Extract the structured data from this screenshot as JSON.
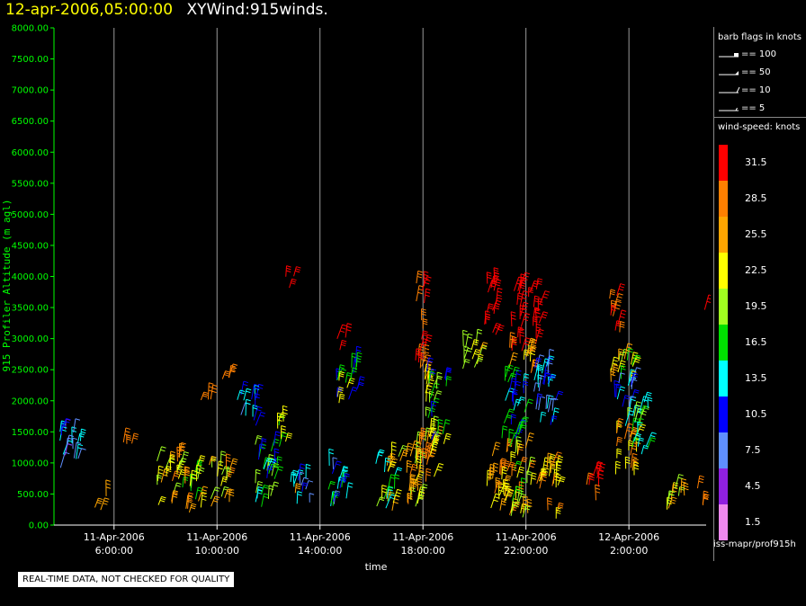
{
  "header": {
    "timestamp": "12-apr-2006,05:00:00",
    "title": "XYWind:915winds."
  },
  "chart_data": {
    "type": "wind-barb-time-height",
    "title": "XYWind:915winds.",
    "xlabel": "time",
    "ylabel": "915 Profiler Altitude (m agl)",
    "ylim": [
      0,
      8000
    ],
    "yticks": [
      "0.00",
      "500.00",
      "1000.00",
      "1500.00",
      "2000.00",
      "2500.00",
      "3000.00",
      "3500.00",
      "4000.00",
      "4500.00",
      "5000.00",
      "5500.00",
      "6000.00",
      "6500.00",
      "7000.00",
      "7500.00",
      "8000.00"
    ],
    "xlim": [
      "2006-04-11T03:40",
      "2006-04-12T05:00"
    ],
    "xticks": [
      {
        "date": "11-Apr-2006",
        "time": "6:00:00"
      },
      {
        "date": "11-Apr-2006",
        "time": "10:00:00"
      },
      {
        "date": "11-Apr-2006",
        "time": "14:00:00"
      },
      {
        "date": "11-Apr-2006",
        "time": "18:00:00"
      },
      {
        "date": "11-Apr-2006",
        "time": "22:00:00"
      },
      {
        "date": "12-Apr-2006",
        "time": "2:00:00"
      }
    ],
    "grid": "vertical lines at x ticks",
    "barb_legend": {
      "title": "barb flags in knots",
      "items": [
        "== 100",
        "== 50",
        "== 10",
        "== 5"
      ]
    },
    "colorbar": {
      "title": "wind-speed: knots",
      "levels": [
        {
          "label": "31.5",
          "color": "#ff0000"
        },
        {
          "label": "28.5",
          "color": "#ff7f00"
        },
        {
          "label": "25.5",
          "color": "#ffa500"
        },
        {
          "label": "22.5",
          "color": "#ffff00"
        },
        {
          "label": "19.5",
          "color": "#a0ff20"
        },
        {
          "label": "16.5",
          "color": "#00e000"
        },
        {
          "label": "13.5",
          "color": "#00ffff"
        },
        {
          "label": "10.5",
          "color": "#0000ff"
        },
        {
          "label": "7.5",
          "color": "#5f8fff"
        },
        {
          "label": "4.5",
          "color": "#9020e0"
        },
        {
          "label": "1.5",
          "color": "#ee88ee"
        }
      ]
    },
    "clusters": [
      {
        "t": 4.3,
        "alt_min": 800,
        "alt_max": 1600,
        "speeds": [
          4,
          8,
          13,
          10
        ]
      },
      {
        "t": 5.5,
        "alt_min": 200,
        "alt_max": 500,
        "speeds": [
          26
        ]
      },
      {
        "t": 6.5,
        "alt_min": 1300,
        "alt_max": 1350,
        "speeds": [
          29
        ]
      },
      {
        "t": 8.1,
        "alt_min": 200,
        "alt_max": 1100,
        "speeds": [
          22,
          25,
          19,
          28
        ]
      },
      {
        "t": 9.0,
        "alt_min": 200,
        "alt_max": 1000,
        "speeds": [
          24,
          28,
          19,
          22,
          16
        ]
      },
      {
        "t": 10.1,
        "alt_min": 300,
        "alt_max": 1000,
        "speeds": [
          22,
          27,
          18,
          25
        ]
      },
      {
        "t": 9.6,
        "alt_min": 2000,
        "alt_max": 2050,
        "speeds": [
          28
        ]
      },
      {
        "t": 10.4,
        "alt_min": 2300,
        "alt_max": 2400,
        "speeds": [
          29
        ]
      },
      {
        "t": 11.2,
        "alt_min": 1600,
        "alt_max": 2100,
        "speeds": [
          10,
          7,
          13
        ]
      },
      {
        "t": 11.9,
        "alt_min": 200,
        "alt_max": 1300,
        "speeds": [
          13,
          19,
          10,
          16
        ]
      },
      {
        "t": 12.6,
        "alt_min": 1100,
        "alt_max": 1700,
        "speeds": [
          17,
          22
        ]
      },
      {
        "t": 13.3,
        "alt_min": 300,
        "alt_max": 800,
        "speeds": [
          10,
          8,
          13,
          25
        ]
      },
      {
        "t": 12.8,
        "alt_min": 3800,
        "alt_max": 4100,
        "speeds": [
          31
        ]
      },
      {
        "t": 14.6,
        "alt_min": 300,
        "alt_max": 1000,
        "speeds": [
          10,
          16,
          13,
          7
        ]
      },
      {
        "t": 14.9,
        "alt_min": 2800,
        "alt_max": 3100,
        "speeds": [
          31
        ]
      },
      {
        "t": 15.1,
        "alt_min": 1900,
        "alt_max": 2700,
        "speeds": [
          22,
          16,
          10
        ]
      },
      {
        "t": 16.5,
        "alt_min": 200,
        "alt_max": 1100,
        "speeds": [
          16,
          19,
          22,
          13,
          25
        ]
      },
      {
        "t": 17.5,
        "alt_min": 300,
        "alt_max": 1400,
        "speeds": [
          25,
          22,
          28,
          19
        ]
      },
      {
        "t": 18.2,
        "alt_min": 600,
        "alt_max": 1400,
        "speeds": [
          28,
          25,
          22
        ]
      },
      {
        "t": 17.9,
        "alt_min": 2300,
        "alt_max": 3900,
        "speeds": [
          31,
          29
        ]
      },
      {
        "t": 18.5,
        "alt_min": 1200,
        "alt_max": 2500,
        "speeds": [
          19,
          16,
          22,
          10
        ]
      },
      {
        "t": 19.9,
        "alt_min": 2500,
        "alt_max": 3000,
        "speeds": [
          22,
          25,
          19
        ]
      },
      {
        "t": 20.6,
        "alt_min": 2800,
        "alt_max": 4000,
        "speeds": [
          31
        ]
      },
      {
        "t": 21.6,
        "alt_min": 2700,
        "alt_max": 4000,
        "speeds": [
          31
        ]
      },
      {
        "t": 22.3,
        "alt_min": 2800,
        "alt_max": 3800,
        "speeds": [
          31
        ]
      },
      {
        "t": 21.8,
        "alt_min": 2400,
        "alt_max": 2900,
        "speeds": [
          22,
          25,
          19,
          28
        ]
      },
      {
        "t": 20.9,
        "alt_min": 200,
        "alt_max": 1200,
        "speeds": [
          28,
          25,
          22
        ]
      },
      {
        "t": 21.8,
        "alt_min": 100,
        "alt_max": 1300,
        "speeds": [
          19,
          22,
          25,
          28,
          16
        ]
      },
      {
        "t": 21.5,
        "alt_min": 1300,
        "alt_max": 2400,
        "speeds": [
          13,
          10,
          16
        ]
      },
      {
        "t": 22.7,
        "alt_min": 1600,
        "alt_max": 2800,
        "speeds": [
          13,
          10,
          8
        ]
      },
      {
        "t": 22.8,
        "alt_min": 100,
        "alt_max": 1000,
        "speeds": [
          28,
          25,
          22
        ]
      },
      {
        "t": 25.5,
        "alt_min": 2900,
        "alt_max": 3700,
        "speeds": [
          31,
          29
        ]
      },
      {
        "t": 25.7,
        "alt_min": 2300,
        "alt_max": 2900,
        "speeds": [
          22,
          25,
          19,
          16
        ]
      },
      {
        "t": 25.9,
        "alt_min": 1800,
        "alt_max": 2400,
        "speeds": [
          13,
          10,
          8,
          4
        ]
      },
      {
        "t": 24.6,
        "alt_min": 400,
        "alt_max": 1000,
        "speeds": [
          31,
          28
        ]
      },
      {
        "t": 25.9,
        "alt_min": 800,
        "alt_max": 1500,
        "speeds": [
          28,
          25,
          22
        ]
      },
      {
        "t": 26.3,
        "alt_min": 1100,
        "alt_max": 1900,
        "speeds": [
          16,
          19,
          13
        ]
      },
      {
        "t": 26.6,
        "alt_min": 1800,
        "alt_max": 2000,
        "speeds": [
          13
        ]
      },
      {
        "t": 27.9,
        "alt_min": 200,
        "alt_max": 600,
        "speeds": [
          22,
          25,
          19
        ]
      },
      {
        "t": 28.8,
        "alt_min": 300,
        "alt_max": 600,
        "speeds": [
          28,
          25
        ]
      },
      {
        "t": 29.1,
        "alt_min": 3300,
        "alt_max": 3500,
        "speeds": [
          31
        ]
      }
    ]
  },
  "footer": {
    "source": "iss-mapr/prof915h",
    "warning": "REAL-TIME DATA, NOT CHECKED FOR QUALITY"
  }
}
